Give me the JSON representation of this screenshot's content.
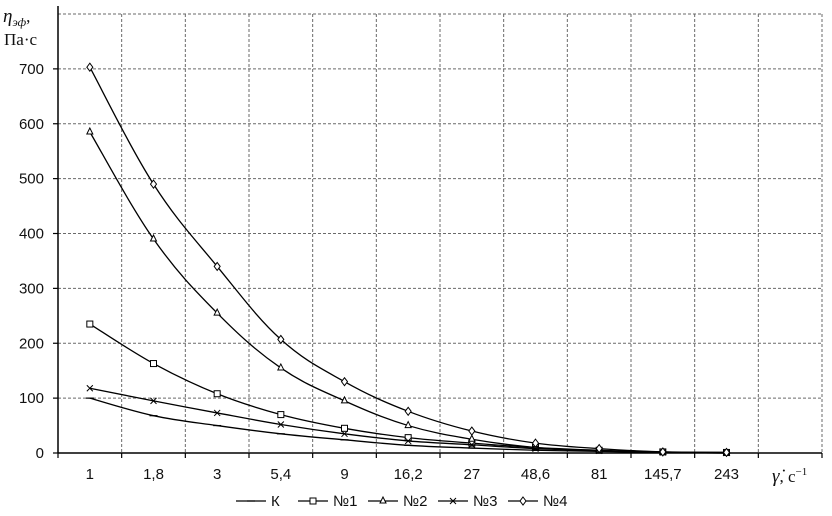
{
  "chart_data": {
    "type": "line",
    "ylabel_symbol": "η",
    "ylabel_subscript": "эф",
    "ylabel_suffix": ",",
    "yunit": "Па·с",
    "xlabel_symbol": "γ̇",
    "xlabel_unit": ", c",
    "xlabel_exp": "−1",
    "categories": [
      "1",
      "1,8",
      "3",
      "5,4",
      "9",
      "16,2",
      "27",
      "48,6",
      "81",
      "145,7",
      "243"
    ],
    "ylim": [
      0,
      800
    ],
    "yticks": [
      0,
      100,
      200,
      300,
      400,
      500,
      600,
      700
    ],
    "grid": true,
    "legend_position": "bottom",
    "series": [
      {
        "name": "К",
        "marker": "dash",
        "values": [
          100,
          68,
          50,
          35,
          24,
          14,
          9,
          5,
          3,
          1,
          0
        ]
      },
      {
        "name": "№1",
        "marker": "square",
        "values": [
          235,
          163,
          108,
          70,
          45,
          28,
          18,
          10,
          5,
          2,
          1
        ]
      },
      {
        "name": "№2",
        "marker": "triangle",
        "values": [
          585,
          390,
          255,
          155,
          95,
          50,
          25,
          10,
          4,
          1,
          0
        ]
      },
      {
        "name": "№3",
        "marker": "x",
        "values": [
          118,
          95,
          73,
          52,
          35,
          22,
          15,
          8,
          4,
          1,
          0
        ]
      },
      {
        "name": "№4",
        "marker": "diamond",
        "values": [
          703,
          490,
          340,
          207,
          130,
          76,
          40,
          18,
          8,
          2,
          1
        ]
      }
    ]
  }
}
